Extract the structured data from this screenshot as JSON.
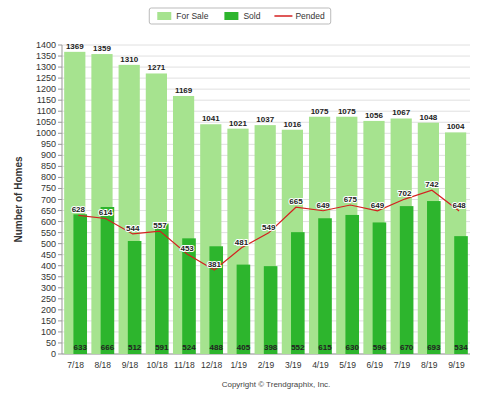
{
  "chart_data": {
    "type": "bar",
    "y_label": "Number of Homes",
    "annotation": "Copyright © Trendgraphix, Inc.",
    "categories": [
      "7/18",
      "8/18",
      "9/18",
      "10/18",
      "11/18",
      "12/18",
      "1/19",
      "2/19",
      "3/19",
      "4/19",
      "5/19",
      "6/19",
      "7/19",
      "8/19",
      "9/19"
    ],
    "series": [
      {
        "name": "For Sale",
        "type": "bar",
        "color": "#a6e38f",
        "values": [
          1369,
          1359,
          1310,
          1271,
          1169,
          1041,
          1021,
          1037,
          1016,
          1075,
          1075,
          1056,
          1067,
          1048,
          1004
        ]
      },
      {
        "name": "Sold",
        "type": "bar",
        "color": "#2db52d",
        "values": [
          633,
          666,
          512,
          591,
          524,
          488,
          405,
          398,
          552,
          615,
          630,
          596,
          670,
          693,
          534
        ]
      },
      {
        "name": "Pended",
        "type": "line",
        "color": "#d42020",
        "marker": "none",
        "values": [
          628,
          614,
          544,
          557,
          453,
          381,
          481,
          549,
          665,
          649,
          675,
          649,
          702,
          742,
          648
        ]
      }
    ],
    "ylim": [
      0,
      1400
    ],
    "yticks": [
      0,
      50,
      100,
      150,
      200,
      250,
      300,
      350,
      400,
      450,
      500,
      550,
      600,
      650,
      700,
      750,
      800,
      850,
      900,
      950,
      1000,
      1050,
      1100,
      1150,
      1200,
      1250,
      1300,
      1350,
      1400
    ],
    "grid": true,
    "legend": "top",
    "data_labels": true
  }
}
